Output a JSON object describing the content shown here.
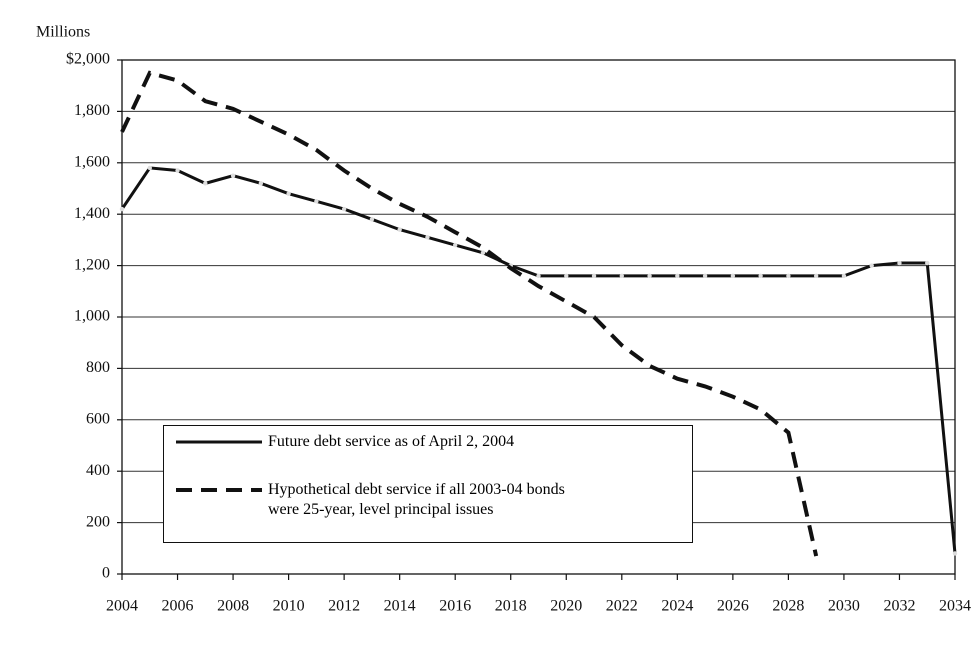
{
  "chart_data": {
    "type": "line",
    "ylabel": "Millions",
    "x": [
      2004,
      2005,
      2006,
      2007,
      2008,
      2009,
      2010,
      2011,
      2012,
      2013,
      2014,
      2015,
      2016,
      2017,
      2018,
      2019,
      2020,
      2021,
      2022,
      2023,
      2024,
      2025,
      2026,
      2027,
      2028,
      2029,
      2030,
      2031,
      2032,
      2033,
      2034
    ],
    "xlim": [
      2004,
      2034
    ],
    "xticks": [
      2004,
      2006,
      2008,
      2010,
      2012,
      2014,
      2016,
      2018,
      2020,
      2022,
      2024,
      2026,
      2028,
      2030,
      2032,
      2034
    ],
    "ylim": [
      0,
      2000
    ],
    "yticks": [
      0,
      200,
      400,
      600,
      800,
      {
        "value": 1000,
        "label": "1,000"
      },
      {
        "value": 1200,
        "label": "1,200"
      },
      {
        "value": 1400,
        "label": "1,400"
      },
      {
        "value": 1600,
        "label": "1,600"
      },
      {
        "value": 1800,
        "label": "1,800"
      },
      {
        "value": 2000,
        "label": "$2,000"
      }
    ],
    "grid": true,
    "series": [
      {
        "name": "Future debt service as of April 2, 2004",
        "color": "#111111",
        "style": "solid",
        "values": [
          1420,
          1580,
          1570,
          1520,
          1550,
          1520,
          1480,
          1450,
          1420,
          1380,
          1340,
          1310,
          1280,
          1250,
          1200,
          1160,
          1160,
          1160,
          1160,
          1160,
          1160,
          1160,
          1160,
          1160,
          1160,
          1160,
          1160,
          1200,
          1210,
          1210,
          80
        ]
      },
      {
        "name": "Hypothetical debt service if all 2003-04 bonds were 25-year, level principal issues",
        "color": "#111111",
        "style": "dashed",
        "values": [
          1720,
          1950,
          1920,
          1840,
          1810,
          1760,
          1710,
          1650,
          1570,
          1500,
          1440,
          1390,
          1330,
          1270,
          1190,
          1120,
          1060,
          1000,
          890,
          810,
          760,
          730,
          690,
          640,
          550,
          70,
          null,
          null,
          null,
          null,
          null
        ]
      }
    ]
  }
}
